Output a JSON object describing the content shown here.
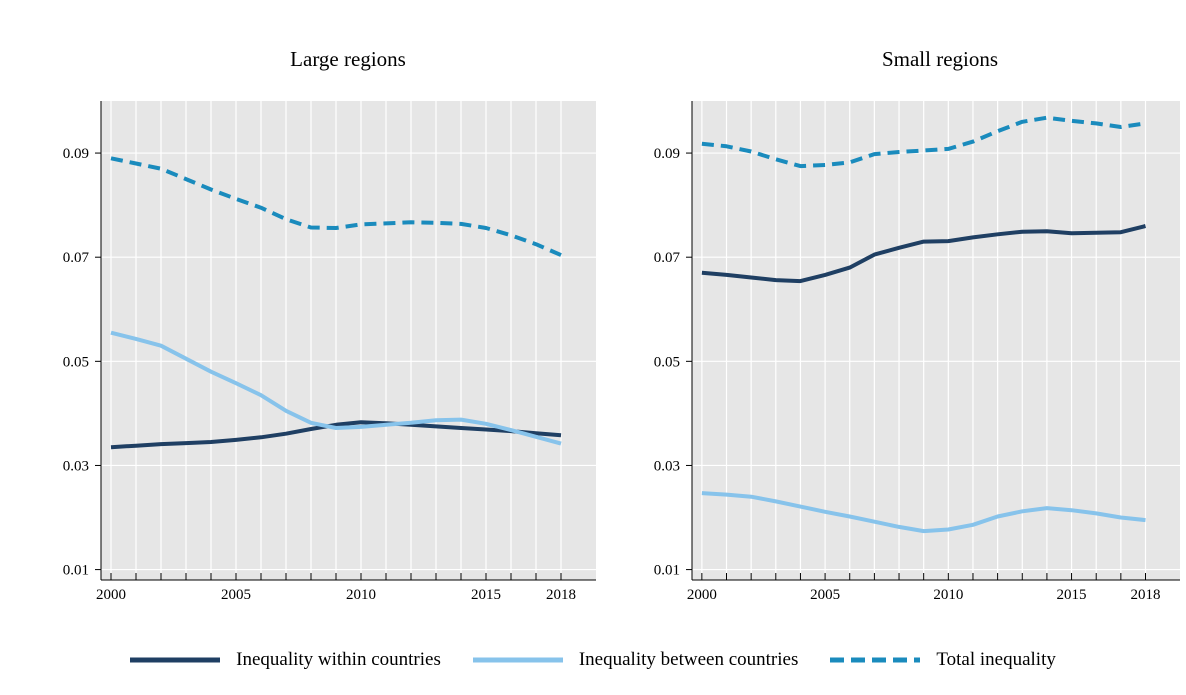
{
  "chart_data": [
    {
      "type": "line",
      "title": "Large regions",
      "xlabel": "",
      "ylabel": "",
      "xlim": [
        1999.6,
        2019.4
      ],
      "ylim": [
        0.008,
        0.1
      ],
      "x_ticks": [
        2000,
        2005,
        2010,
        2015,
        2018
      ],
      "y_ticks": [
        0.01,
        0.03,
        0.05,
        0.07,
        0.09
      ],
      "y_tick_labels": [
        "0.01",
        "0.03",
        "0.05",
        "0.07",
        "0.09"
      ],
      "grid": true,
      "x": [
        2000,
        2001,
        2002,
        2003,
        2004,
        2005,
        2006,
        2007,
        2008,
        2009,
        2010,
        2011,
        2012,
        2013,
        2014,
        2015,
        2016,
        2017,
        2018
      ],
      "series": [
        {
          "key": "within",
          "name": "Inequality within countries",
          "color": "#1f3f63",
          "dashed": false,
          "values": [
            0.0335,
            0.0338,
            0.0341,
            0.0343,
            0.0345,
            0.0349,
            0.0354,
            0.0361,
            0.037,
            0.0378,
            0.0383,
            0.0381,
            0.0378,
            0.0375,
            0.0372,
            0.0369,
            0.0366,
            0.0362,
            0.0358
          ]
        },
        {
          "key": "between",
          "name": "Inequality between countries",
          "color": "#87c3eb",
          "dashed": false,
          "values": [
            0.0555,
            0.0543,
            0.053,
            0.0505,
            0.048,
            0.0458,
            0.0435,
            0.0405,
            0.0382,
            0.0372,
            0.0374,
            0.0378,
            0.0382,
            0.0387,
            0.0388,
            0.038,
            0.0368,
            0.0355,
            0.0342
          ]
        },
        {
          "key": "total",
          "name": "Total inequality",
          "color": "#1a8bbd",
          "dashed": true,
          "values": [
            0.089,
            0.088,
            0.087,
            0.085,
            0.083,
            0.0812,
            0.0795,
            0.0773,
            0.0757,
            0.0756,
            0.0763,
            0.0765,
            0.0767,
            0.0766,
            0.0764,
            0.0756,
            0.0742,
            0.0725,
            0.0704
          ]
        }
      ]
    },
    {
      "type": "line",
      "title": "Small regions",
      "xlabel": "",
      "ylabel": "",
      "xlim": [
        1999.6,
        2019.4
      ],
      "ylim": [
        0.008,
        0.1
      ],
      "x_ticks": [
        2000,
        2005,
        2010,
        2015,
        2018
      ],
      "y_ticks": [
        0.01,
        0.03,
        0.05,
        0.07,
        0.09
      ],
      "y_tick_labels": [
        "0.01",
        "0.03",
        "0.05",
        "0.07",
        "0.09"
      ],
      "grid": true,
      "x": [
        2000,
        2001,
        2002,
        2003,
        2004,
        2005,
        2006,
        2007,
        2008,
        2009,
        2010,
        2011,
        2012,
        2013,
        2014,
        2015,
        2016,
        2017,
        2018
      ],
      "series": [
        {
          "key": "within",
          "name": "Inequality within countries",
          "color": "#1f3f63",
          "dashed": false,
          "values": [
            0.067,
            0.0666,
            0.0661,
            0.0656,
            0.0654,
            0.0666,
            0.068,
            0.0705,
            0.0718,
            0.073,
            0.0731,
            0.0738,
            0.0744,
            0.0749,
            0.075,
            0.0746,
            0.0747,
            0.0748,
            0.076
          ]
        },
        {
          "key": "between",
          "name": "Inequality between countries",
          "color": "#87c3eb",
          "dashed": false,
          "values": [
            0.0247,
            0.0244,
            0.024,
            0.0231,
            0.0221,
            0.0211,
            0.0202,
            0.0192,
            0.0182,
            0.0174,
            0.0177,
            0.0186,
            0.0202,
            0.0212,
            0.0218,
            0.0214,
            0.0208,
            0.02,
            0.0195
          ]
        },
        {
          "key": "total",
          "name": "Total inequality",
          "color": "#1a8bbd",
          "dashed": true,
          "values": [
            0.0918,
            0.0913,
            0.0903,
            0.0888,
            0.0875,
            0.0877,
            0.0882,
            0.0898,
            0.0902,
            0.0905,
            0.0908,
            0.0922,
            0.0942,
            0.096,
            0.0968,
            0.0962,
            0.0957,
            0.095,
            0.0957
          ]
        }
      ]
    }
  ],
  "legend": {
    "placement": "bottom",
    "items": [
      {
        "label": "Inequality within countries",
        "color": "#1f3f63",
        "dashed": false
      },
      {
        "label": "Inequality between countries",
        "color": "#87c3eb",
        "dashed": false
      },
      {
        "label": "Total inequality",
        "color": "#1a8bbd",
        "dashed": true
      }
    ]
  },
  "colors": {
    "plot_background": "#e6e6e6",
    "grid": "#ffffff"
  }
}
